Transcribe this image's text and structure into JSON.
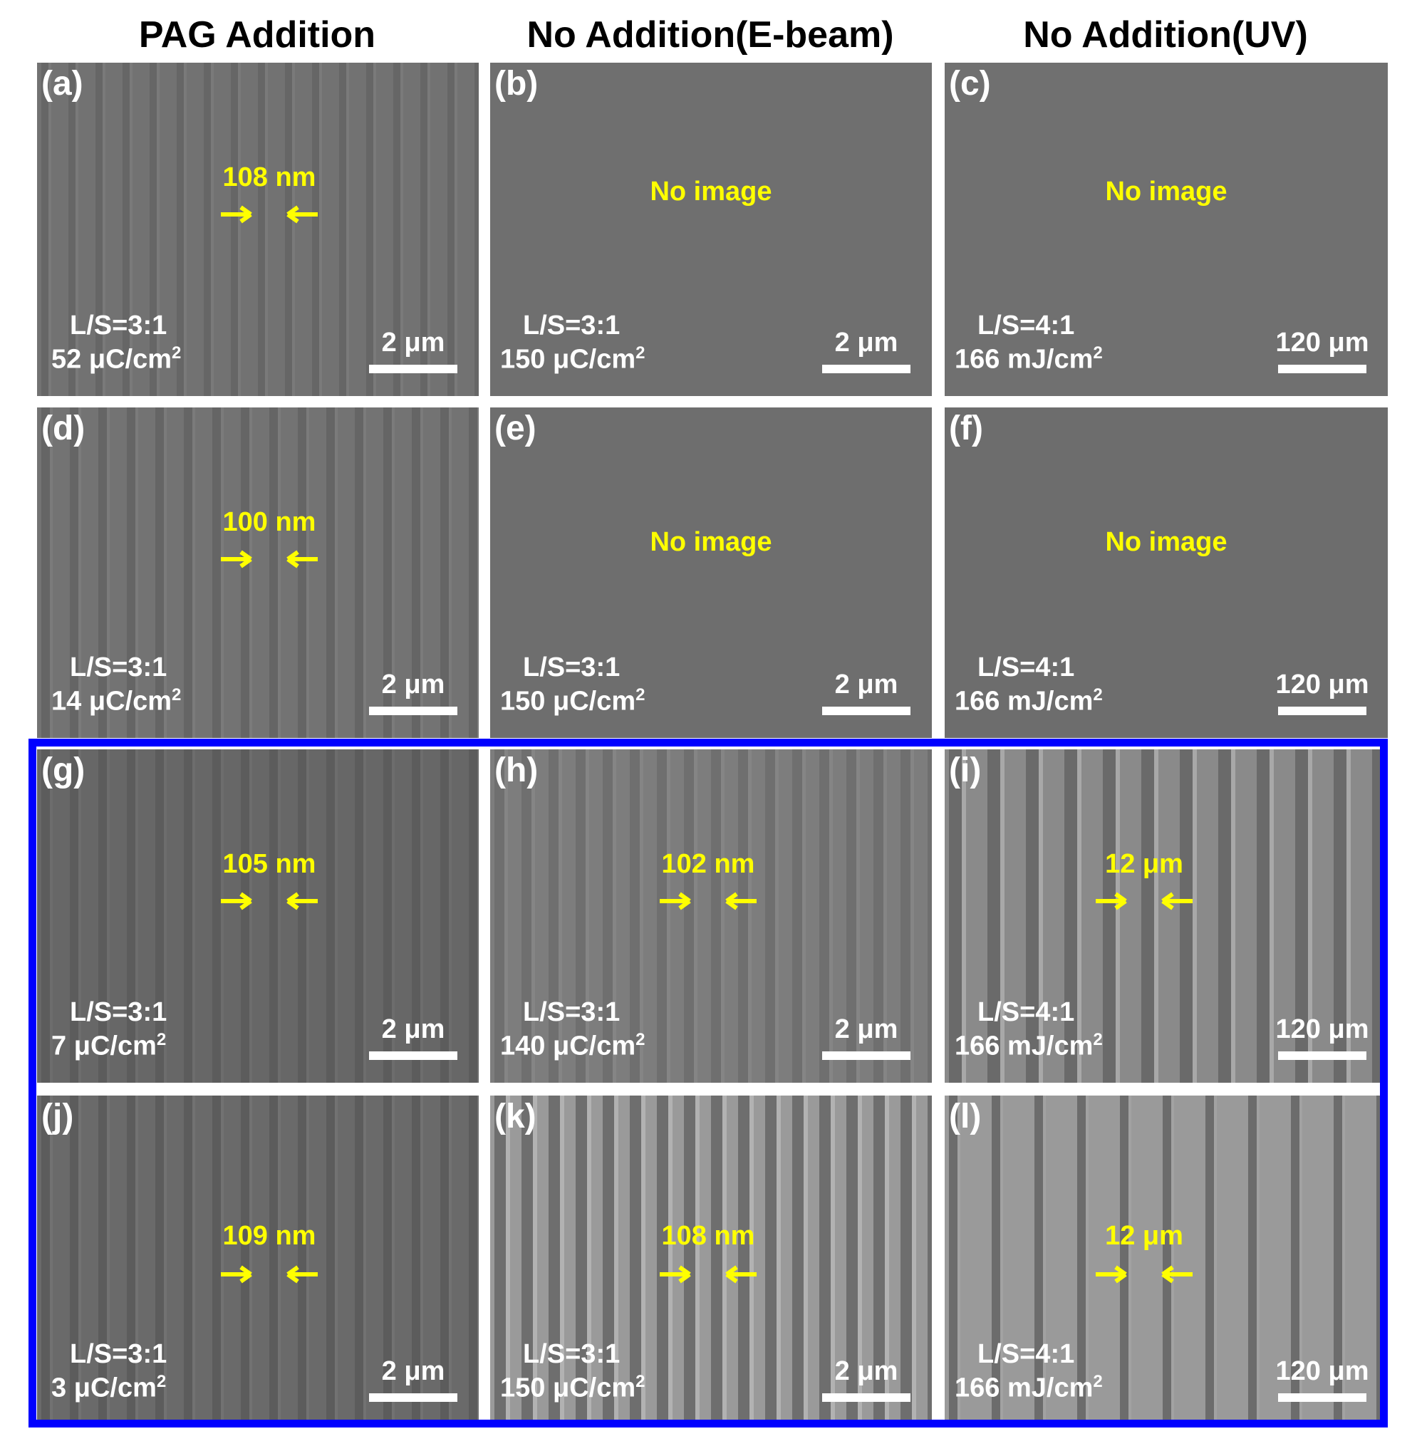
{
  "column_titles": [
    "PAG Addition",
    "No Addition(E-beam)",
    "No Addition(UV)"
  ],
  "panels": [
    {
      "label": "(a)",
      "ls": "L/S=3:1",
      "dose_value": "52 μC/cm",
      "dose_exp": "2",
      "scale": "2 μm",
      "measure": "108 nm",
      "no_image": ""
    },
    {
      "label": "(b)",
      "ls": "L/S=3:1",
      "dose_value": "150 μC/cm",
      "dose_exp": "2",
      "scale": "2 μm",
      "measure": "",
      "no_image": "No image"
    },
    {
      "label": "(c)",
      "ls": "L/S=4:1",
      "dose_value": "166 mJ/cm",
      "dose_exp": "2",
      "scale": "120 μm",
      "measure": "",
      "no_image": "No image"
    },
    {
      "label": "(d)",
      "ls": "L/S=3:1",
      "dose_value": "14 μC/cm",
      "dose_exp": "2",
      "scale": "2 μm",
      "measure": "100 nm",
      "no_image": ""
    },
    {
      "label": "(e)",
      "ls": "L/S=3:1",
      "dose_value": "150 μC/cm",
      "dose_exp": "2",
      "scale": "2 μm",
      "measure": "",
      "no_image": "No image"
    },
    {
      "label": "(f)",
      "ls": "L/S=4:1",
      "dose_value": "166 mJ/cm",
      "dose_exp": "2",
      "scale": "120 μm",
      "measure": "",
      "no_image": "No image"
    },
    {
      "label": "(g)",
      "ls": "L/S=3:1",
      "dose_value": "7 μC/cm",
      "dose_exp": "2",
      "scale": "2 μm",
      "measure": "105 nm",
      "no_image": ""
    },
    {
      "label": "(h)",
      "ls": "L/S=3:1",
      "dose_value": "140 μC/cm",
      "dose_exp": "2",
      "scale": "2 μm",
      "measure": "102 nm",
      "no_image": ""
    },
    {
      "label": "(i)",
      "ls": "L/S=4:1",
      "dose_value": "166 mJ/cm",
      "dose_exp": "2",
      "scale": "120 μm",
      "measure": "12 μm",
      "no_image": ""
    },
    {
      "label": "(j)",
      "ls": "L/S=3:1",
      "dose_value": "3 μC/cm",
      "dose_exp": "2",
      "scale": "2 μm",
      "measure": "109 nm",
      "no_image": ""
    },
    {
      "label": "(k)",
      "ls": "L/S=3:1",
      "dose_value": "150 μC/cm",
      "dose_exp": "2",
      "scale": "2 μm",
      "measure": "108 nm",
      "no_image": ""
    },
    {
      "label": "(l)",
      "ls": "L/S=4:1",
      "dose_value": "166 mJ/cm",
      "dose_exp": "2",
      "scale": "120 μm",
      "measure": "12 μm",
      "no_image": ""
    }
  ],
  "colors": {
    "annotation_yellow": "#ffff00",
    "label_white": "#ffffff",
    "highlight_box": "#0000ff"
  }
}
